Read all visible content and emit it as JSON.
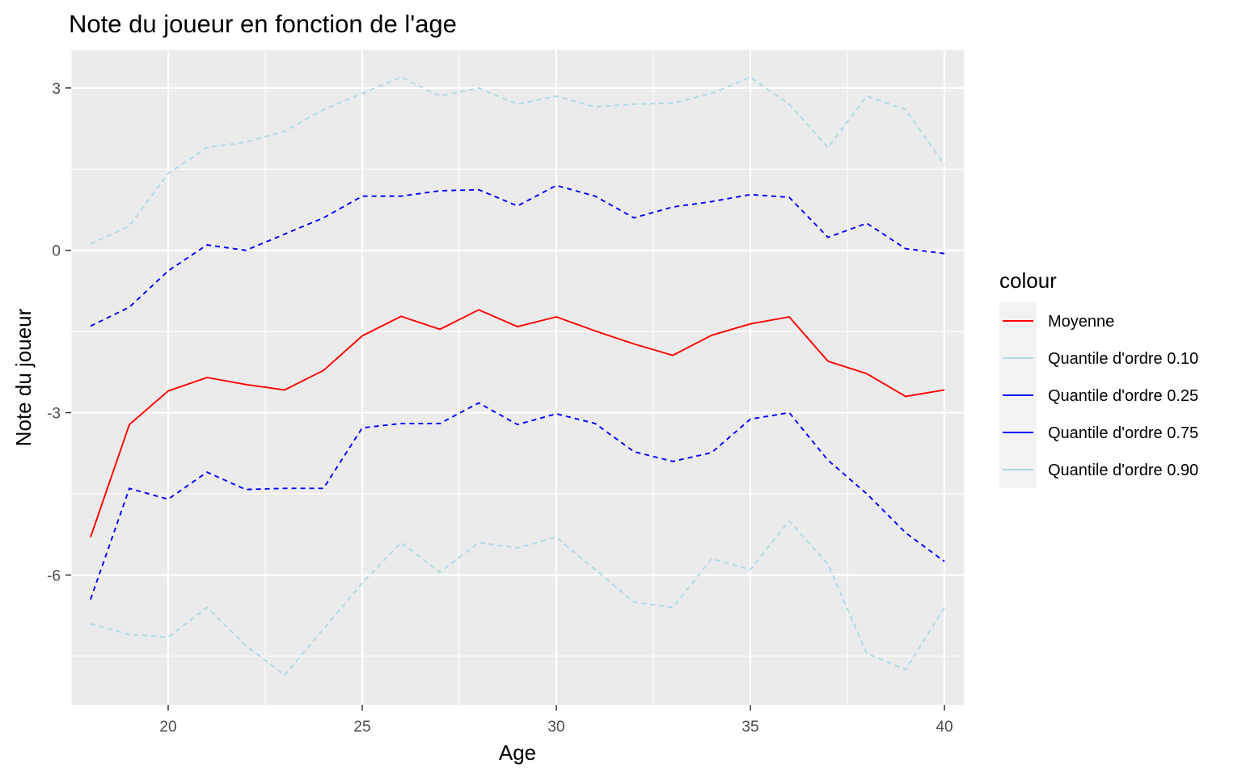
{
  "chart_data": {
    "type": "line",
    "title": "Note du joueur en fonction de l'age",
    "xlabel": "Age",
    "ylabel": "Note du joueur",
    "xlim": [
      17.5,
      40.5
    ],
    "ylim": [
      -8.4,
      3.7
    ],
    "xticks": [
      20,
      25,
      30,
      35,
      40
    ],
    "yticks": [
      3,
      0,
      -3,
      -6
    ],
    "ytick_labels": [
      "3",
      "0",
      "-3",
      "-6"
    ],
    "grid": true,
    "legend": {
      "title": "colour",
      "position": "right"
    },
    "x": [
      18,
      19,
      20,
      21,
      22,
      23,
      24,
      25,
      26,
      27,
      28,
      29,
      30,
      31,
      32,
      33,
      34,
      35,
      36,
      37,
      38,
      39,
      40
    ],
    "series": [
      {
        "name": "Moyenne",
        "color": "#ff0000",
        "dash": "solid",
        "values": [
          -5.3,
          -3.22,
          -2.6,
          -2.35,
          -2.48,
          -2.58,
          -2.22,
          -1.58,
          -1.22,
          -1.46,
          -1.1,
          -1.41,
          -1.23,
          -1.49,
          -1.73,
          -1.94,
          -1.57,
          -1.36,
          -1.23,
          -2.05,
          -2.28,
          -2.7,
          -2.58
        ]
      },
      {
        "name": "Quantile d'ordre 0.10",
        "color": "#add8e6",
        "dash": "dashed",
        "values": [
          -6.9,
          -7.1,
          -7.15,
          -6.6,
          -7.3,
          -7.85,
          -7.0,
          -6.15,
          -5.4,
          -5.95,
          -5.4,
          -5.5,
          -5.3,
          -5.9,
          -6.5,
          -6.6,
          -5.7,
          -5.9,
          -5.0,
          -5.8,
          -7.45,
          -7.75,
          -6.6
        ]
      },
      {
        "name": "Quantile d'ordre 0.25",
        "color": "#0000ff",
        "dash": "dashed",
        "values": [
          -6.45,
          -4.4,
          -4.6,
          -4.1,
          -4.42,
          -4.4,
          -4.4,
          -3.28,
          -3.2,
          -3.2,
          -2.82,
          -3.22,
          -3.02,
          -3.2,
          -3.72,
          -3.9,
          -3.74,
          -3.12,
          -3.0,
          -3.88,
          -4.5,
          -5.22,
          -5.75
        ]
      },
      {
        "name": "Quantile d'ordre 0.75",
        "color": "#0000ff",
        "dash": "dashed",
        "values": [
          -1.4,
          -1.05,
          -0.38,
          0.1,
          0.0,
          0.3,
          0.6,
          1.0,
          1.0,
          1.1,
          1.12,
          0.82,
          1.2,
          1.0,
          0.6,
          0.8,
          0.9,
          1.03,
          0.98,
          0.24,
          0.5,
          0.03,
          -0.06
        ]
      },
      {
        "name": "Quantile d'ordre 0.90",
        "color": "#add8e6",
        "dash": "dashed",
        "values": [
          0.12,
          0.45,
          1.42,
          1.9,
          2.0,
          2.2,
          2.6,
          2.9,
          3.2,
          2.85,
          3.0,
          2.7,
          2.85,
          2.65,
          2.7,
          2.72,
          2.9,
          3.2,
          2.7,
          1.9,
          2.85,
          2.6,
          1.58
        ]
      }
    ]
  }
}
